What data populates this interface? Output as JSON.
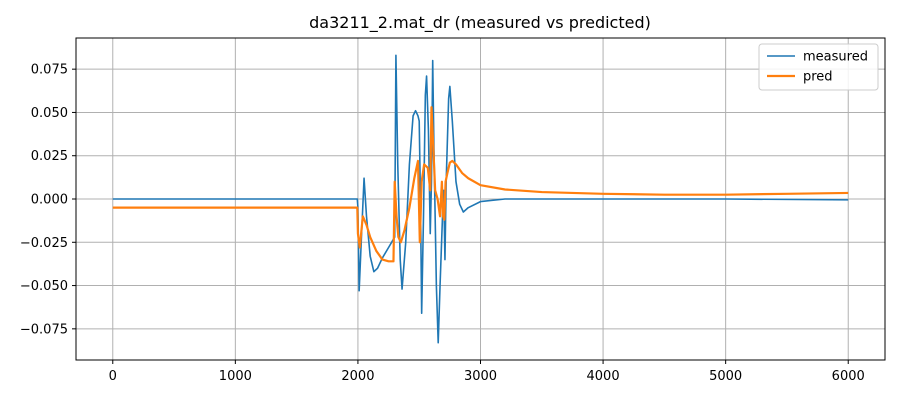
{
  "chart_data": {
    "type": "line",
    "title": "da3211_2.mat_dr  (measured vs predicted)",
    "xlabel": "",
    "ylabel": "",
    "xlim": [
      -300,
      6300
    ],
    "ylim": [
      -0.093,
      0.093
    ],
    "grid": true,
    "legend": "top-right",
    "xticks": [
      0,
      1000,
      2000,
      3000,
      4000,
      5000,
      6000
    ],
    "xtick_labels": [
      "0",
      "1000",
      "2000",
      "3000",
      "4000",
      "5000",
      "6000"
    ],
    "yticks": [
      0.075,
      0.05,
      0.025,
      0.0,
      -0.025,
      -0.05,
      -0.075
    ],
    "ytick_labels": [
      "0.075",
      "0.050",
      "0.025",
      "0.000",
      "−0.025",
      "−0.050",
      "−0.075"
    ],
    "series": [
      {
        "name": "measured",
        "color": "#1f77b4",
        "points": [
          [
            0,
            0.0
          ],
          [
            1995,
            0.0
          ],
          [
            2000,
            -0.005
          ],
          [
            2010,
            -0.053
          ],
          [
            2030,
            -0.02
          ],
          [
            2050,
            0.012
          ],
          [
            2070,
            -0.01
          ],
          [
            2100,
            -0.033
          ],
          [
            2130,
            -0.042
          ],
          [
            2160,
            -0.04
          ],
          [
            2200,
            -0.034
          ],
          [
            2250,
            -0.028
          ],
          [
            2300,
            -0.022
          ],
          [
            2310,
            0.083
          ],
          [
            2325,
            0.02
          ],
          [
            2345,
            -0.035
          ],
          [
            2360,
            -0.052
          ],
          [
            2390,
            -0.025
          ],
          [
            2420,
            0.02
          ],
          [
            2450,
            0.048
          ],
          [
            2470,
            0.051
          ],
          [
            2490,
            0.048
          ],
          [
            2500,
            0.045
          ],
          [
            2510,
            0.0
          ],
          [
            2520,
            -0.066
          ],
          [
            2535,
            -0.01
          ],
          [
            2550,
            0.06
          ],
          [
            2560,
            0.071
          ],
          [
            2575,
            0.04
          ],
          [
            2590,
            -0.02
          ],
          [
            2600,
            0.01
          ],
          [
            2610,
            0.08
          ],
          [
            2620,
            0.03
          ],
          [
            2640,
            -0.05
          ],
          [
            2655,
            -0.083
          ],
          [
            2670,
            -0.05
          ],
          [
            2690,
            -0.01
          ],
          [
            2700,
            0.005
          ],
          [
            2710,
            -0.035
          ],
          [
            2720,
            0.01
          ],
          [
            2740,
            0.058
          ],
          [
            2750,
            0.065
          ],
          [
            2770,
            0.045
          ],
          [
            2800,
            0.01
          ],
          [
            2830,
            -0.003
          ],
          [
            2860,
            -0.0075
          ],
          [
            2900,
            -0.005
          ],
          [
            3000,
            -0.0015
          ],
          [
            3200,
            0.0
          ],
          [
            4000,
            0.0
          ],
          [
            5000,
            0.0
          ],
          [
            6000,
            -0.0005
          ]
        ]
      },
      {
        "name": "pred",
        "color": "#ff7f0e",
        "points": [
          [
            0,
            -0.005
          ],
          [
            1995,
            -0.005
          ],
          [
            2000,
            -0.02
          ],
          [
            2015,
            -0.028
          ],
          [
            2040,
            -0.01
          ],
          [
            2070,
            -0.015
          ],
          [
            2100,
            -0.022
          ],
          [
            2150,
            -0.03
          ],
          [
            2200,
            -0.035
          ],
          [
            2250,
            -0.036
          ],
          [
            2290,
            -0.036
          ],
          [
            2300,
            0.01
          ],
          [
            2315,
            -0.01
          ],
          [
            2330,
            -0.022
          ],
          [
            2350,
            -0.025
          ],
          [
            2380,
            -0.018
          ],
          [
            2420,
            -0.005
          ],
          [
            2460,
            0.012
          ],
          [
            2490,
            0.022
          ],
          [
            2505,
            -0.025
          ],
          [
            2520,
            0.01
          ],
          [
            2540,
            0.02
          ],
          [
            2570,
            0.018
          ],
          [
            2590,
            0.005
          ],
          [
            2600,
            0.053
          ],
          [
            2615,
            0.03
          ],
          [
            2630,
            0.005
          ],
          [
            2650,
            0.0
          ],
          [
            2670,
            -0.01
          ],
          [
            2685,
            0.01
          ],
          [
            2695,
            -0.01
          ],
          [
            2705,
            -0.012
          ],
          [
            2715,
            0.01
          ],
          [
            2730,
            0.015
          ],
          [
            2750,
            0.021
          ],
          [
            2770,
            0.022
          ],
          [
            2800,
            0.02
          ],
          [
            2850,
            0.015
          ],
          [
            2900,
            0.012
          ],
          [
            3000,
            0.008
          ],
          [
            3200,
            0.0055
          ],
          [
            3500,
            0.004
          ],
          [
            4000,
            0.003
          ],
          [
            4500,
            0.0025
          ],
          [
            5000,
            0.0025
          ],
          [
            5500,
            0.003
          ],
          [
            6000,
            0.0035
          ]
        ]
      }
    ]
  }
}
